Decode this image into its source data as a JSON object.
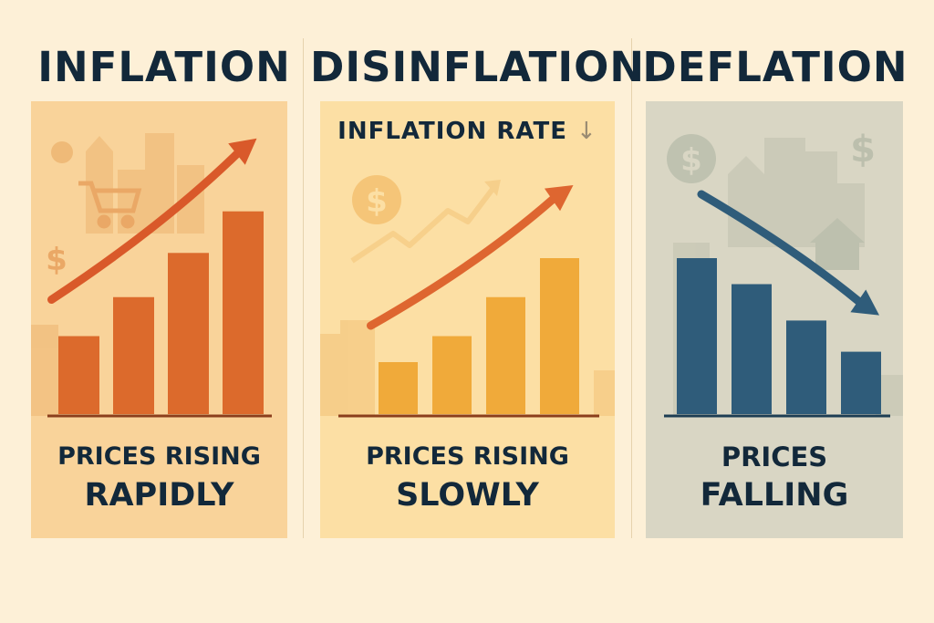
{
  "columns": [
    {
      "title": "INFLATION",
      "caption_line1": "PRICES RISING",
      "caption_line2": "RAPIDLY",
      "bar_levels": [
        0.3,
        0.45,
        0.62,
        0.78
      ],
      "trend": "up",
      "bar_color": "#dc6a2c",
      "arrow_color": "#d9592a",
      "panel_color": "#f9d39a"
    },
    {
      "title": "DISINFLATION",
      "subtitle": "INFLATION RATE",
      "subtitle_arrow": "↓",
      "caption_line1": "PRICES RISING",
      "caption_line2": "SLOWLY",
      "bar_levels": [
        0.2,
        0.3,
        0.45,
        0.6
      ],
      "trend": "up",
      "bar_color": "#f0aa3a",
      "arrow_color": "#de6630",
      "panel_color": "#fcdfa4"
    },
    {
      "title": "DEFLATION",
      "caption_line1": "PRICES",
      "caption_line2": "FALLING",
      "bar_levels": [
        0.6,
        0.5,
        0.36,
        0.24
      ],
      "trend": "down",
      "bar_color": "#2f5c7a",
      "arrow_color": "#2f5c7a",
      "panel_color": "#d9d6c4"
    }
  ],
  "icons": [
    "dollar-sign-icon",
    "city-skyline-icon",
    "shopping-cart-icon",
    "house-icon"
  ]
}
